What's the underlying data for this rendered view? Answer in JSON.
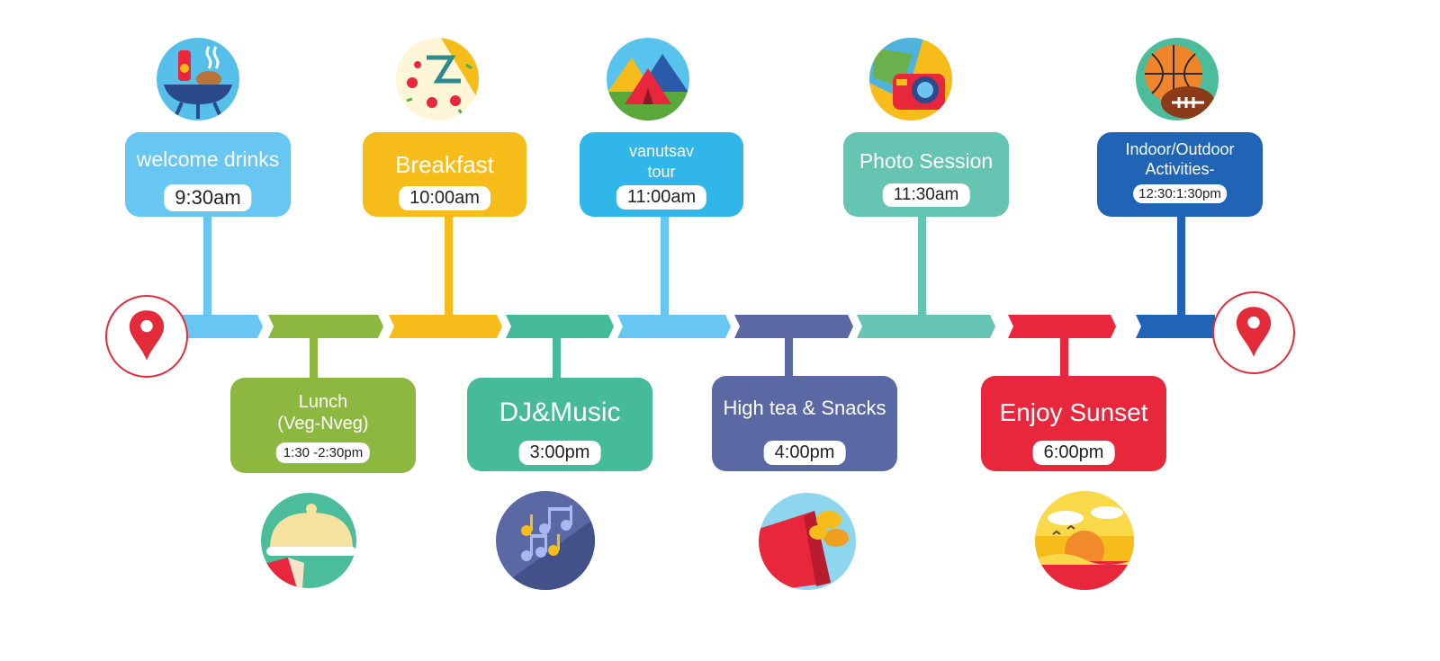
{
  "events_top": [
    {
      "title": "welcome drinks",
      "time": "9:30am",
      "color": "#67c6f2",
      "icon": "barbecue-grill-icon"
    },
    {
      "title": "Breakfast",
      "time": "10:00am",
      "color": "#f6bd1a",
      "icon": "pizza-icon"
    },
    {
      "title_line1": "vanutsav",
      "title_line2": "tour",
      "time": "11:00am",
      "color": "#30b6e8",
      "icon": "camping-tent-icon"
    },
    {
      "title": "Photo Session",
      "time": "11:30am",
      "color": "#66c4b2",
      "icon": "camera-icon"
    },
    {
      "title_line1": "Indoor/Outdoor",
      "title_line2": "Activities-",
      "time": "12:30:1:30pm",
      "color": "#1f64b5",
      "icon": "sports-balls-icon"
    }
  ],
  "events_bottom": [
    {
      "title_line1": "Lunch",
      "title_line2": "(Veg-Nveg)",
      "time": "1:30 -2:30pm",
      "color": "#8db83f",
      "icon": "food-cloche-icon"
    },
    {
      "title": "DJ&Music",
      "time": "3:00pm",
      "color": "#46bb9a",
      "icon": "music-notes-icon"
    },
    {
      "title": "High tea & Snacks",
      "time": "4:00pm",
      "color": "#5a68a4",
      "icon": "chips-snacks-icon"
    },
    {
      "title": "Enjoy Sunset",
      "time": "6:00pm",
      "color": "#e8263c",
      "icon": "sunset-icon"
    }
  ],
  "timeline_colors": [
    "#67c6f2",
    "#8db83f",
    "#f6bd1a",
    "#46bb9a",
    "#67c6f2",
    "#5a68a4",
    "#66c4b2",
    "#e8263c",
    "#1f64b5"
  ],
  "pin_color": "#e42b3a",
  "start_icon": "location-pin-icon",
  "end_icon": "location-pin-icon"
}
